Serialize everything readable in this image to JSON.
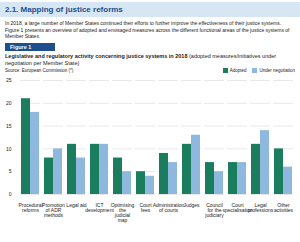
{
  "heading": "2.1. Mapping of justice reforms",
  "paragraph": "In 2018, a large number of Member States continued their efforts to further improve the effectiveness of their justice systems. Figure 1 presents an overview of adopted and envisaged measures across the different functional areas of the justice systems of Member States.",
  "figure_label": "Figure 1",
  "chart_data": {
    "type": "bar",
    "title": "Legislative and regulatory activity concerning justice systems in 2018",
    "subtitle": "(adopted measures/initiatives under negotiation per Member State)",
    "source": "Source: European Commission (*)",
    "categories": [
      "Procedural reforms",
      "Promotion of ADR methods",
      "Legal aid",
      "ICT development",
      "Optimising the judicial map",
      "Court fees",
      "Administration of courts",
      "Judges",
      "Council for the judiciary",
      "Court specialisation",
      "Legal professions",
      "Other activities"
    ],
    "series": [
      {
        "name": "Adopted",
        "color": "#1a7d5e",
        "values": [
          21,
          8,
          11,
          11,
          8,
          5,
          9,
          11,
          7,
          7,
          11,
          10
        ]
      },
      {
        "name": "Under negotiation",
        "color": "#8fb8de",
        "values": [
          18,
          10,
          8,
          11,
          5,
          4,
          7,
          13,
          5,
          7,
          14,
          6
        ]
      }
    ],
    "ylim": [
      0,
      25
    ],
    "yticks": [
      0,
      5,
      10,
      15,
      20,
      25
    ],
    "grid": true,
    "legend": "top-right"
  }
}
